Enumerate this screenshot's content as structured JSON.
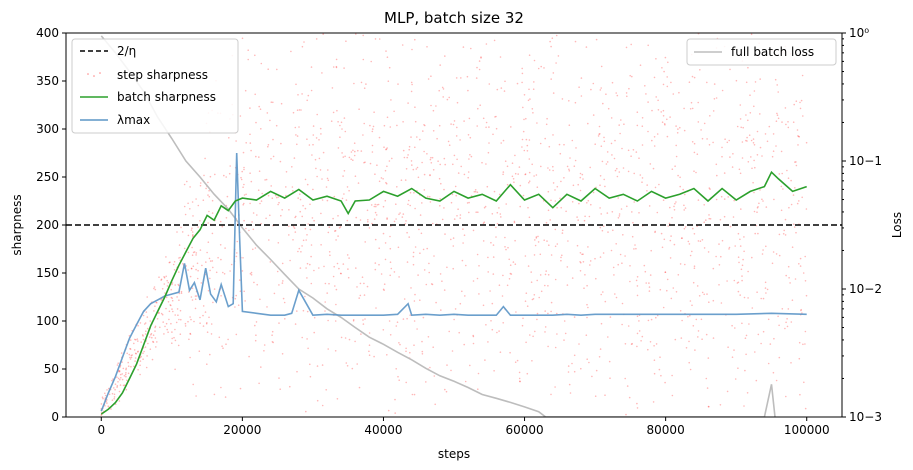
{
  "chart_data": {
    "type": "line",
    "title": "MLP, batch size 32",
    "xlabel": "steps",
    "ylabel": "sharpness",
    "ylabel_right": "Loss",
    "xlim": [
      -5000,
      105000
    ],
    "ylim": [
      0,
      400
    ],
    "ylim_right": [
      0.001,
      1
    ],
    "yscale_right": "log",
    "x_ticks": [
      0,
      20000,
      40000,
      60000,
      80000,
      100000
    ],
    "x_tick_labels": [
      "0",
      "20000",
      "40000",
      "60000",
      "80000",
      "100000"
    ],
    "y_ticks": [
      0,
      50,
      100,
      150,
      200,
      250,
      300,
      350,
      400
    ],
    "y_tick_labels": [
      "0",
      "50",
      "100",
      "150",
      "200",
      "250",
      "300",
      "350",
      "400"
    ],
    "y_right_ticks": [
      0.001,
      0.01,
      0.1,
      1
    ],
    "y_right_tick_labels": [
      "10−3",
      "10−2",
      "10−1",
      "10⁰"
    ],
    "grid": false,
    "legend_left": {
      "position": "top-left",
      "entries": [
        "2/η",
        "step sharpness",
        "batch sharpness",
        "λmax"
      ]
    },
    "legend_right": {
      "position": "top-right",
      "entries": [
        "full batch loss"
      ]
    },
    "colors": {
      "threshold": "#000000",
      "step_sharpness": "#ff3333",
      "batch_sharpness": "#2ca02c",
      "lambda_max": "#5b95c6",
      "full_batch_loss": "#bdbdbd"
    },
    "series": [
      {
        "name": "2/η",
        "style": "dashed",
        "axis": "left",
        "x": [
          -5000,
          105000
        ],
        "y": [
          200,
          200
        ]
      },
      {
        "name": "batch sharpness",
        "axis": "left",
        "x": [
          0,
          1000,
          2000,
          3000,
          4000,
          5000,
          6000,
          7000,
          8000,
          9000,
          10000,
          11000,
          12000,
          13000,
          14000,
          15000,
          16000,
          17000,
          18000,
          19000,
          20000,
          22000,
          24000,
          26000,
          28000,
          30000,
          32000,
          34000,
          35000,
          36000,
          38000,
          40000,
          42000,
          44000,
          46000,
          48000,
          50000,
          52000,
          54000,
          56000,
          58000,
          60000,
          62000,
          64000,
          66000,
          68000,
          70000,
          72000,
          74000,
          76000,
          78000,
          80000,
          82000,
          84000,
          86000,
          88000,
          90000,
          92000,
          94000,
          95000,
          96000,
          98000,
          100000
        ],
        "y": [
          3,
          8,
          15,
          25,
          40,
          55,
          75,
          95,
          110,
          125,
          142,
          158,
          172,
          186,
          195,
          210,
          205,
          220,
          215,
          225,
          228,
          226,
          235,
          228,
          237,
          226,
          230,
          225,
          212,
          225,
          226,
          235,
          230,
          238,
          228,
          225,
          235,
          228,
          232,
          225,
          242,
          226,
          232,
          218,
          232,
          225,
          238,
          228,
          232,
          225,
          235,
          228,
          232,
          238,
          225,
          238,
          226,
          235,
          240,
          255,
          248,
          235,
          240
        ]
      },
      {
        "name": "λmax",
        "axis": "left",
        "x": [
          0,
          1000,
          2000,
          3000,
          4000,
          5000,
          6000,
          7000,
          8000,
          9000,
          10000,
          11000,
          11800,
          12500,
          13200,
          14000,
          14800,
          15500,
          16300,
          17000,
          18000,
          18700,
          19200,
          19600,
          20000,
          22000,
          24000,
          26000,
          27000,
          28000,
          30000,
          32000,
          34000,
          36000,
          38000,
          40000,
          42000,
          43500,
          44000,
          46000,
          48000,
          50000,
          52000,
          54000,
          56000,
          57000,
          58000,
          60000,
          62000,
          64000,
          66000,
          68000,
          70000,
          75000,
          80000,
          85000,
          90000,
          95000,
          100000
        ],
        "y": [
          6,
          25,
          42,
          62,
          82,
          96,
          110,
          118,
          122,
          126,
          128,
          130,
          160,
          132,
          140,
          122,
          155,
          128,
          120,
          138,
          115,
          118,
          275,
          190,
          110,
          108,
          106,
          106,
          108,
          132,
          106,
          107,
          106,
          106,
          106,
          106,
          107,
          118,
          106,
          107,
          106,
          107,
          106,
          106,
          106,
          115,
          106,
          106,
          106,
          106,
          107,
          106,
          107,
          107,
          107,
          107,
          107,
          108,
          107
        ]
      },
      {
        "name": "full batch loss",
        "axis": "right",
        "x": [
          0,
          2000,
          4000,
          6000,
          8000,
          10000,
          12000,
          14000,
          16000,
          18000,
          20000,
          22000,
          24000,
          26000,
          28000,
          30000,
          32000,
          34000,
          36000,
          38000,
          40000,
          42000,
          44000,
          46000,
          48000,
          50000,
          52000,
          54000,
          56000,
          58000,
          60000,
          62000,
          63000,
          94000,
          95000,
          95500
        ],
        "y": [
          0.95,
          0.7,
          0.5,
          0.35,
          0.22,
          0.15,
          0.1,
          0.075,
          0.055,
          0.042,
          0.03,
          0.022,
          0.017,
          0.013,
          0.01,
          0.0085,
          0.007,
          0.006,
          0.005,
          0.0042,
          0.0037,
          0.0032,
          0.0028,
          0.0024,
          0.0021,
          0.0019,
          0.0017,
          0.0015,
          0.0014,
          0.0013,
          0.0012,
          0.0011,
          0.001,
          0.001,
          0.0018,
          0.001
        ]
      },
      {
        "name": "step sharpness",
        "style": "scatter",
        "axis": "left",
        "x_range": [
          0,
          100000
        ],
        "y_range": [
          0,
          400
        ],
        "center": 220,
        "approx_count": 2200
      }
    ]
  }
}
